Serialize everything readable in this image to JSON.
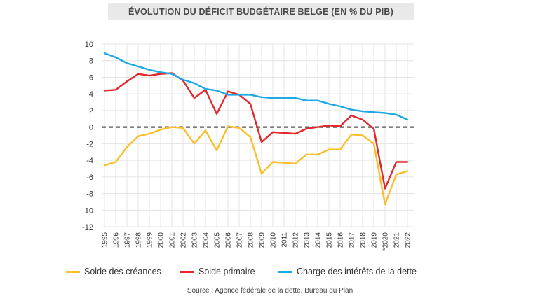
{
  "chart_data": {
    "type": "line",
    "title": "ÉVOLUTION DU DÉFICIT BUDGÉTAIRE BELGE (EN % DU PIB)",
    "xlabel": "",
    "ylabel": "",
    "ylim": [
      -12,
      10
    ],
    "yticks": [
      10,
      8,
      6,
      4,
      2,
      0,
      -2,
      -4,
      -6,
      -8,
      -10,
      -12
    ],
    "categories": [
      "1995",
      "1996",
      "1997",
      "1998",
      "1999",
      "2000",
      "2001",
      "2002",
      "2003",
      "2004",
      "2005",
      "2006",
      "2007",
      "2008",
      "2009",
      "2010",
      "2011",
      "2012",
      "2013",
      "2014",
      "2015",
      "2016",
      "2017",
      "2018",
      "2019",
      "2020",
      "2021",
      "2022"
    ],
    "category_labels": [
      "1995",
      "1996",
      "1997",
      "1998",
      "1999",
      "2000",
      "2001",
      "2002",
      "2003",
      "2004",
      "2005",
      "2006",
      "2007",
      "2008",
      "2009",
      "2010",
      "2011",
      "2012",
      "2013",
      "2014",
      "2015",
      "2016",
      "2017",
      "2018",
      "2019",
      "*2020",
      "2021",
      "2022"
    ],
    "zero_line": true,
    "grid": true,
    "series": [
      {
        "name": "Solde des créances",
        "color": "#fcbe2c",
        "values": [
          -4.6,
          -4.2,
          -2.4,
          -1.1,
          -0.8,
          -0.3,
          0.0,
          -0.1,
          -2.0,
          -0.4,
          -2.8,
          0.1,
          -0.1,
          -1.2,
          -5.6,
          -4.2,
          -4.3,
          -4.4,
          -3.3,
          -3.3,
          -2.7,
          -2.7,
          -0.9,
          -1.0,
          -2.0,
          -9.3,
          -5.7,
          -5.3
        ]
      },
      {
        "name": "Solde primaire",
        "color": "#e2282b",
        "values": [
          4.4,
          4.5,
          5.5,
          6.4,
          6.2,
          6.4,
          6.5,
          5.6,
          3.5,
          4.5,
          1.6,
          4.3,
          3.9,
          2.8,
          -1.8,
          -0.6,
          -0.7,
          -0.8,
          -0.2,
          0.0,
          0.2,
          0.1,
          1.4,
          0.9,
          -0.2,
          -7.4,
          -4.2,
          -4.2
        ]
      },
      {
        "name": "Charge des intérêts de la dette",
        "color": "#1fa9e4",
        "values": [
          8.9,
          8.4,
          7.7,
          7.3,
          6.9,
          6.6,
          6.4,
          5.7,
          5.3,
          4.6,
          4.4,
          3.9,
          3.9,
          3.9,
          3.6,
          3.5,
          3.5,
          3.5,
          3.2,
          3.2,
          2.8,
          2.5,
          2.1,
          1.9,
          1.8,
          1.7,
          1.5,
          0.9
        ]
      }
    ]
  },
  "legend": {
    "items": [
      {
        "label": "Solde des créances",
        "color": "#fcbe2c"
      },
      {
        "label": "Solde primaire",
        "color": "#e2282b"
      },
      {
        "label": "Charge des intérêts de la dette",
        "color": "#1fa9e4"
      }
    ]
  },
  "source": "Source : Agence fédérale de la dette, Bureau du Plan"
}
